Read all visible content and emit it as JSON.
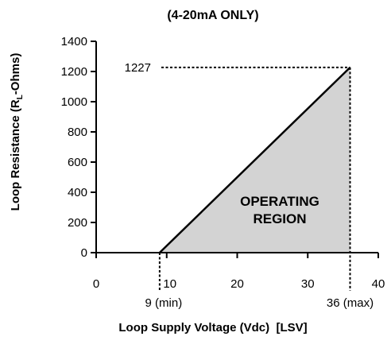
{
  "chart_data": {
    "type": "area",
    "title": "(4-20mA ONLY)",
    "xlabel": "Loop Supply Voltage (Vdc)  [LSV]",
    "ylabel_main": "Loop Resistance (R",
    "ylabel_sub": "L",
    "ylabel_end": "-Ohms)",
    "xlim": [
      0,
      40
    ],
    "ylim": [
      0,
      1400
    ],
    "x_ticks": [
      {
        "value": 0,
        "label": "0"
      },
      {
        "value": 10,
        "label": "10"
      },
      {
        "value": 20,
        "label": "20"
      },
      {
        "value": 30,
        "label": "30"
      },
      {
        "value": 40,
        "label": "40"
      }
    ],
    "y_ticks": [
      {
        "value": 0,
        "label": "0"
      },
      {
        "value": 200,
        "label": "200"
      },
      {
        "value": 400,
        "label": "400"
      },
      {
        "value": 600,
        "label": "600"
      },
      {
        "value": 800,
        "label": "800"
      },
      {
        "value": 1000,
        "label": "1000"
      },
      {
        "value": 1200,
        "label": "1200"
      },
      {
        "value": 1400,
        "label": "1400"
      }
    ],
    "series": [
      {
        "x": [
          9,
          36
        ],
        "y": [
          0,
          1227
        ]
      }
    ],
    "region_label": [
      "OPERATING",
      "REGION"
    ],
    "annotations": {
      "max_resistance": {
        "value": 1227,
        "label": "1227"
      },
      "min_voltage": {
        "value": 9,
        "label": "9 (min)"
      },
      "max_voltage": {
        "value": 36,
        "label": "36 (max)"
      }
    },
    "fill_color": "#d3d3d3",
    "line_color": "#000000",
    "grid": false
  }
}
